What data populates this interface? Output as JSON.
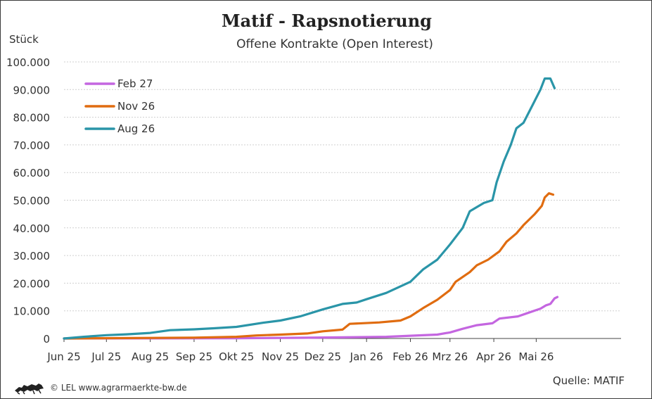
{
  "header": {
    "title": "Matif - Rapsnotierung",
    "subtitle": "Offene Kontrakte (Open Interest)",
    "unit": "Stück"
  },
  "footer": {
    "copyright": "© LEL www.agrarmaerkte-bw.de",
    "source": "Quelle: MATIF",
    "logo_icon": "lion-logo-icon"
  },
  "chart_data": {
    "type": "line",
    "title": "Matif - Rapsnotierung",
    "subtitle": "Offene Kontrakte (Open Interest)",
    "ylabel": "Stück",
    "ylim": [
      0,
      100000
    ],
    "yticks": [
      0,
      10000,
      20000,
      30000,
      40000,
      50000,
      60000,
      70000,
      80000,
      90000,
      100000
    ],
    "ytick_labels": [
      "0",
      "10.000",
      "20.000",
      "30.000",
      "40.000",
      "50.000",
      "60.000",
      "70.000",
      "80.000",
      "90.000",
      "100.000"
    ],
    "xlim": [
      "2025-06-01",
      "2026-06-30"
    ],
    "xticks": [
      "2025-06-01",
      "2025-07-01",
      "2025-08-01",
      "2025-09-01",
      "2025-10-01",
      "2025-11-01",
      "2025-12-01",
      "2026-01-01",
      "2026-02-01",
      "2026-03-01",
      "2026-04-01",
      "2026-05-01"
    ],
    "xtick_labels": [
      "Jun 25",
      "Jul 25",
      "Aug 25",
      "Sep 25",
      "Okt 25",
      "Nov 25",
      "Dez 25",
      "Jan 26",
      "Feb 26",
      "Mrz 26",
      "Apr 26",
      "Mai 26"
    ],
    "grid": "horizontal",
    "legend_position": "top-left",
    "series": [
      {
        "name": "Feb 27",
        "color": "#c466e0",
        "points": [
          [
            "2025-06-01",
            0
          ],
          [
            "2025-10-01",
            100
          ],
          [
            "2025-11-15",
            250
          ],
          [
            "2025-12-15",
            400
          ],
          [
            "2026-01-15",
            600
          ],
          [
            "2026-02-01",
            1000
          ],
          [
            "2026-02-20",
            1400
          ],
          [
            "2026-03-01",
            2200
          ],
          [
            "2026-03-10",
            3500
          ],
          [
            "2026-03-20",
            4800
          ],
          [
            "2026-03-31",
            5500
          ],
          [
            "2026-04-05",
            7200
          ],
          [
            "2026-04-18",
            8000
          ],
          [
            "2026-04-25",
            9200
          ],
          [
            "2026-05-04",
            10800
          ],
          [
            "2026-05-08",
            12000
          ],
          [
            "2026-05-11",
            12500
          ],
          [
            "2026-05-14",
            14500
          ],
          [
            "2026-05-16",
            15000
          ]
        ]
      },
      {
        "name": "Nov 26",
        "color": "#e06c10",
        "points": [
          [
            "2025-06-01",
            0
          ],
          [
            "2025-08-01",
            200
          ],
          [
            "2025-09-01",
            300
          ],
          [
            "2025-10-01",
            600
          ],
          [
            "2025-10-15",
            1100
          ],
          [
            "2025-11-01",
            1400
          ],
          [
            "2025-11-20",
            1800
          ],
          [
            "2025-12-01",
            2600
          ],
          [
            "2025-12-15",
            3200
          ],
          [
            "2025-12-20",
            5300
          ],
          [
            "2026-01-10",
            5800
          ],
          [
            "2026-01-25",
            6500
          ],
          [
            "2026-02-01",
            8000
          ],
          [
            "2026-02-10",
            11000
          ],
          [
            "2026-02-20",
            14000
          ],
          [
            "2026-03-01",
            17500
          ],
          [
            "2026-03-05",
            20500
          ],
          [
            "2026-03-15",
            24000
          ],
          [
            "2026-03-20",
            26500
          ],
          [
            "2026-03-28",
            28500
          ],
          [
            "2026-04-05",
            31500
          ],
          [
            "2026-04-10",
            35000
          ],
          [
            "2026-04-17",
            38000
          ],
          [
            "2026-04-22",
            41000
          ],
          [
            "2026-04-30",
            45000
          ],
          [
            "2026-05-05",
            48000
          ],
          [
            "2026-05-07",
            51000
          ],
          [
            "2026-05-10",
            52500
          ],
          [
            "2026-05-13",
            52000
          ]
        ]
      },
      {
        "name": "Aug 26",
        "color": "#2a95a8",
        "points": [
          [
            "2025-06-01",
            0
          ],
          [
            "2025-06-15",
            600
          ],
          [
            "2025-07-01",
            1200
          ],
          [
            "2025-07-15",
            1500
          ],
          [
            "2025-08-01",
            2000
          ],
          [
            "2025-08-15",
            3000
          ],
          [
            "2025-09-01",
            3300
          ],
          [
            "2025-09-15",
            3700
          ],
          [
            "2025-10-01",
            4200
          ],
          [
            "2025-10-20",
            5700
          ],
          [
            "2025-11-01",
            6500
          ],
          [
            "2025-11-15",
            8000
          ],
          [
            "2025-12-01",
            10500
          ],
          [
            "2025-12-15",
            12500
          ],
          [
            "2025-12-25",
            13000
          ],
          [
            "2026-01-01",
            14200
          ],
          [
            "2026-01-15",
            16500
          ],
          [
            "2026-02-01",
            20500
          ],
          [
            "2026-02-10",
            25000
          ],
          [
            "2026-02-20",
            28500
          ],
          [
            "2026-03-01",
            34000
          ],
          [
            "2026-03-10",
            40000
          ],
          [
            "2026-03-15",
            46000
          ],
          [
            "2026-03-20",
            47500
          ],
          [
            "2026-03-25",
            49000
          ],
          [
            "2026-03-31",
            50000
          ],
          [
            "2026-04-03",
            56500
          ],
          [
            "2026-04-08",
            64000
          ],
          [
            "2026-04-13",
            70000
          ],
          [
            "2026-04-17",
            76000
          ],
          [
            "2026-04-22",
            78000
          ],
          [
            "2026-04-28",
            84000
          ],
          [
            "2026-05-04",
            90000
          ],
          [
            "2026-05-07",
            94000
          ],
          [
            "2026-05-11",
            94000
          ],
          [
            "2026-05-14",
            90500
          ]
        ]
      }
    ]
  }
}
